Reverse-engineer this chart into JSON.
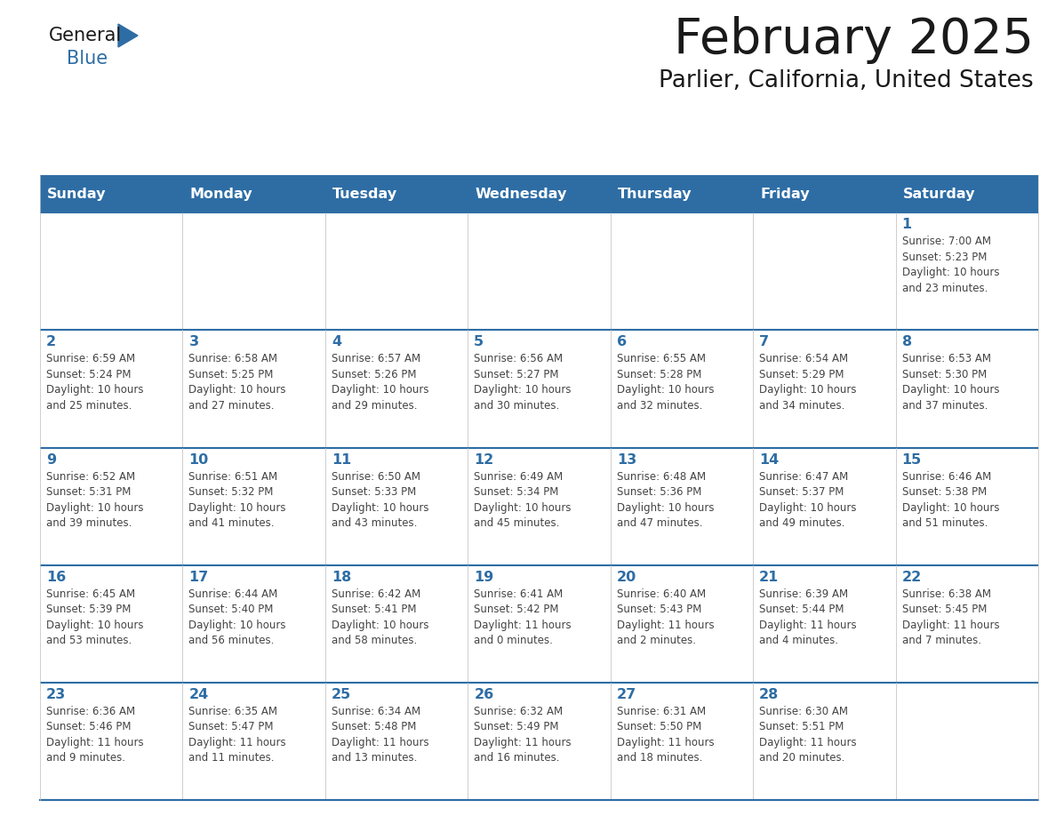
{
  "title": "February 2025",
  "subtitle": "Parlier, California, United States",
  "header_bg": "#2E6DA4",
  "header_text_color": "#FFFFFF",
  "cell_bg": "#FFFFFF",
  "border_color": "#2E6DA4",
  "day_number_color": "#2E6DA4",
  "text_color": "#444444",
  "days_of_week": [
    "Sunday",
    "Monday",
    "Tuesday",
    "Wednesday",
    "Thursday",
    "Friday",
    "Saturday"
  ],
  "weeks": [
    [
      {
        "day": "",
        "info": ""
      },
      {
        "day": "",
        "info": ""
      },
      {
        "day": "",
        "info": ""
      },
      {
        "day": "",
        "info": ""
      },
      {
        "day": "",
        "info": ""
      },
      {
        "day": "",
        "info": ""
      },
      {
        "day": "1",
        "info": "Sunrise: 7:00 AM\nSunset: 5:23 PM\nDaylight: 10 hours\nand 23 minutes."
      }
    ],
    [
      {
        "day": "2",
        "info": "Sunrise: 6:59 AM\nSunset: 5:24 PM\nDaylight: 10 hours\nand 25 minutes."
      },
      {
        "day": "3",
        "info": "Sunrise: 6:58 AM\nSunset: 5:25 PM\nDaylight: 10 hours\nand 27 minutes."
      },
      {
        "day": "4",
        "info": "Sunrise: 6:57 AM\nSunset: 5:26 PM\nDaylight: 10 hours\nand 29 minutes."
      },
      {
        "day": "5",
        "info": "Sunrise: 6:56 AM\nSunset: 5:27 PM\nDaylight: 10 hours\nand 30 minutes."
      },
      {
        "day": "6",
        "info": "Sunrise: 6:55 AM\nSunset: 5:28 PM\nDaylight: 10 hours\nand 32 minutes."
      },
      {
        "day": "7",
        "info": "Sunrise: 6:54 AM\nSunset: 5:29 PM\nDaylight: 10 hours\nand 34 minutes."
      },
      {
        "day": "8",
        "info": "Sunrise: 6:53 AM\nSunset: 5:30 PM\nDaylight: 10 hours\nand 37 minutes."
      }
    ],
    [
      {
        "day": "9",
        "info": "Sunrise: 6:52 AM\nSunset: 5:31 PM\nDaylight: 10 hours\nand 39 minutes."
      },
      {
        "day": "10",
        "info": "Sunrise: 6:51 AM\nSunset: 5:32 PM\nDaylight: 10 hours\nand 41 minutes."
      },
      {
        "day": "11",
        "info": "Sunrise: 6:50 AM\nSunset: 5:33 PM\nDaylight: 10 hours\nand 43 minutes."
      },
      {
        "day": "12",
        "info": "Sunrise: 6:49 AM\nSunset: 5:34 PM\nDaylight: 10 hours\nand 45 minutes."
      },
      {
        "day": "13",
        "info": "Sunrise: 6:48 AM\nSunset: 5:36 PM\nDaylight: 10 hours\nand 47 minutes."
      },
      {
        "day": "14",
        "info": "Sunrise: 6:47 AM\nSunset: 5:37 PM\nDaylight: 10 hours\nand 49 minutes."
      },
      {
        "day": "15",
        "info": "Sunrise: 6:46 AM\nSunset: 5:38 PM\nDaylight: 10 hours\nand 51 minutes."
      }
    ],
    [
      {
        "day": "16",
        "info": "Sunrise: 6:45 AM\nSunset: 5:39 PM\nDaylight: 10 hours\nand 53 minutes."
      },
      {
        "day": "17",
        "info": "Sunrise: 6:44 AM\nSunset: 5:40 PM\nDaylight: 10 hours\nand 56 minutes."
      },
      {
        "day": "18",
        "info": "Sunrise: 6:42 AM\nSunset: 5:41 PM\nDaylight: 10 hours\nand 58 minutes."
      },
      {
        "day": "19",
        "info": "Sunrise: 6:41 AM\nSunset: 5:42 PM\nDaylight: 11 hours\nand 0 minutes."
      },
      {
        "day": "20",
        "info": "Sunrise: 6:40 AM\nSunset: 5:43 PM\nDaylight: 11 hours\nand 2 minutes."
      },
      {
        "day": "21",
        "info": "Sunrise: 6:39 AM\nSunset: 5:44 PM\nDaylight: 11 hours\nand 4 minutes."
      },
      {
        "day": "22",
        "info": "Sunrise: 6:38 AM\nSunset: 5:45 PM\nDaylight: 11 hours\nand 7 minutes."
      }
    ],
    [
      {
        "day": "23",
        "info": "Sunrise: 6:36 AM\nSunset: 5:46 PM\nDaylight: 11 hours\nand 9 minutes."
      },
      {
        "day": "24",
        "info": "Sunrise: 6:35 AM\nSunset: 5:47 PM\nDaylight: 11 hours\nand 11 minutes."
      },
      {
        "day": "25",
        "info": "Sunrise: 6:34 AM\nSunset: 5:48 PM\nDaylight: 11 hours\nand 13 minutes."
      },
      {
        "day": "26",
        "info": "Sunrise: 6:32 AM\nSunset: 5:49 PM\nDaylight: 11 hours\nand 16 minutes."
      },
      {
        "day": "27",
        "info": "Sunrise: 6:31 AM\nSunset: 5:50 PM\nDaylight: 11 hours\nand 18 minutes."
      },
      {
        "day": "28",
        "info": "Sunrise: 6:30 AM\nSunset: 5:51 PM\nDaylight: 11 hours\nand 20 minutes."
      },
      {
        "day": "",
        "info": ""
      }
    ]
  ],
  "logo_text_general": "General",
  "logo_text_blue": "Blue",
  "logo_triangle_color": "#2E6DA4",
  "fig_width": 11.88,
  "fig_height": 9.18,
  "dpi": 100
}
